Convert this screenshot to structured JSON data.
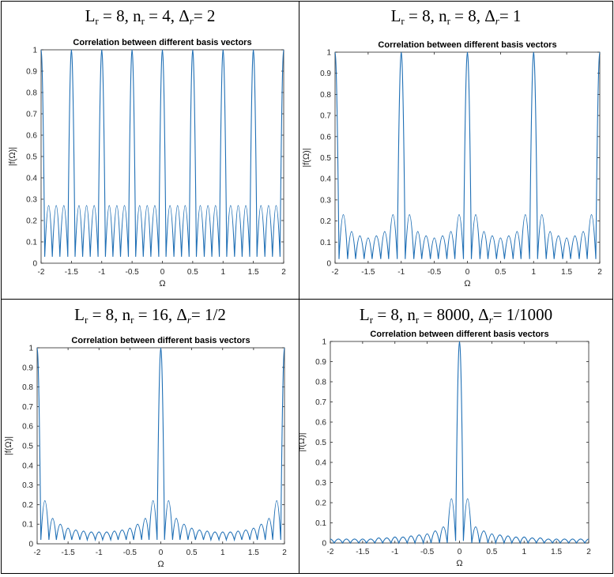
{
  "panels": [
    {
      "heading": {
        "l": "L",
        "ls": "r",
        "mid": " = 8, n",
        "ns": "r",
        "mid2": " = 4, Δ",
        "ds": "r",
        "tail": "= 2"
      }
    },
    {
      "heading": {
        "l": "L",
        "ls": "r",
        "mid": " = 8, n",
        "ns": "r",
        "mid2": " = 8, Δ",
        "ds": "r",
        "tail": "= 1"
      }
    },
    {
      "heading": {
        "l": "L",
        "ls": "r",
        "mid": " = 8, n",
        "ns": "r",
        "mid2": " = 16, Δ",
        "ds": "r",
        "tail": "= 1/2"
      }
    },
    {
      "heading": {
        "l": "L",
        "ls": "r",
        "mid": " = 8, n",
        "ns": "r",
        "mid2": " = 8000, Δ",
        "ds": "r",
        "tail": "= 1/1000"
      }
    }
  ],
  "chart_data": [
    {
      "type": "line",
      "title": "Correlation between different basis vectors",
      "xlabel": "Ω",
      "ylabel": "|f(Ω)|",
      "xlim": [
        -2,
        2
      ],
      "ylim": [
        0,
        1
      ],
      "xticks": [
        "-2",
        "-1.5",
        "-1",
        "-0.5",
        "0",
        "0.5",
        "1",
        "1.5",
        "2"
      ],
      "yticks": [
        "0",
        "0.1",
        "0.2",
        "0.3",
        "0.4",
        "0.5",
        "0.6",
        "0.7",
        "0.8",
        "0.9",
        "1"
      ],
      "series": [
        {
          "color": "#1f6fb5",
          "x": [
            -2,
            -1.94,
            -1.875,
            -1.815,
            -1.75,
            -1.69,
            -1.625,
            -1.56,
            -1.5,
            -1.44,
            -1.375,
            -1.315,
            -1.25,
            -1.19,
            -1.125,
            -1.06,
            -1,
            -0.94,
            -0.875,
            -0.815,
            -0.75,
            -0.69,
            -0.625,
            -0.56,
            -0.5,
            -0.44,
            -0.375,
            -0.315,
            -0.25,
            -0.19,
            -0.125,
            -0.06,
            0,
            0.06,
            0.125,
            0.19,
            0.25,
            0.315,
            0.375,
            0.44,
            0.5,
            0.56,
            0.625,
            0.69,
            0.75,
            0.815,
            0.875,
            0.94,
            1,
            1.06,
            1.125,
            1.19,
            1.25,
            1.315,
            1.375,
            1.44,
            1.5,
            1.56,
            1.625,
            1.69,
            1.75,
            1.815,
            1.875,
            1.94,
            2
          ],
          "y": [
            1,
            0.03,
            0.27,
            0.03,
            0.27,
            0.03,
            0.27,
            0.03,
            1,
            0.03,
            0.27,
            0.03,
            0.27,
            0.03,
            0.27,
            0.03,
            1,
            0.03,
            0.27,
            0.03,
            0.27,
            0.03,
            0.27,
            0.03,
            1,
            0.03,
            0.27,
            0.03,
            0.27,
            0.03,
            0.27,
            0.03,
            1,
            0.03,
            0.27,
            0.03,
            0.27,
            0.03,
            0.27,
            0.03,
            1,
            0.03,
            0.27,
            0.03,
            0.27,
            0.03,
            0.27,
            0.03,
            1,
            0.03,
            0.27,
            0.03,
            0.27,
            0.03,
            0.27,
            0.03,
            1,
            0.03,
            0.27,
            0.03,
            0.27,
            0.03,
            0.27,
            0.03,
            1
          ]
        }
      ]
    },
    {
      "type": "line",
      "title": "Correlation between different basis vectors",
      "xlabel": "Ω",
      "ylabel": "|f(Ω)|",
      "xlim": [
        -2,
        2
      ],
      "ylim": [
        0,
        1
      ],
      "xticks": [
        "-2",
        "-1.5",
        "-1",
        "-0.5",
        "0",
        "0.5",
        "1",
        "1.5",
        "2"
      ],
      "yticks": [
        "0",
        "0.1",
        "0.2",
        "0.3",
        "0.4",
        "0.5",
        "0.6",
        "0.7",
        "0.8",
        "0.9",
        "1"
      ],
      "series": [
        {
          "color": "#1f6fb5",
          "x": [
            -2,
            -1.94,
            -1.875,
            -1.81,
            -1.75,
            -1.69,
            -1.625,
            -1.56,
            -1.5,
            -1.44,
            -1.375,
            -1.31,
            -1.25,
            -1.19,
            -1.125,
            -1.06,
            -1,
            -0.94,
            -0.875,
            -0.81,
            -0.75,
            -0.69,
            -0.625,
            -0.56,
            -0.5,
            -0.44,
            -0.375,
            -0.31,
            -0.25,
            -0.19,
            -0.125,
            -0.06,
            0,
            0.06,
            0.125,
            0.19,
            0.25,
            0.31,
            0.375,
            0.44,
            0.5,
            0.56,
            0.625,
            0.69,
            0.75,
            0.81,
            0.875,
            0.94,
            1,
            1.06,
            1.125,
            1.19,
            1.25,
            1.31,
            1.375,
            1.44,
            1.5,
            1.56,
            1.625,
            1.69,
            1.75,
            1.81,
            1.875,
            1.94,
            2
          ],
          "y": [
            1,
            0.02,
            0.23,
            0.02,
            0.15,
            0.02,
            0.13,
            0.02,
            0.12,
            0.02,
            0.13,
            0.02,
            0.15,
            0.02,
            0.23,
            0.02,
            1,
            0.02,
            0.23,
            0.02,
            0.15,
            0.02,
            0.13,
            0.02,
            0.12,
            0.02,
            0.13,
            0.02,
            0.15,
            0.02,
            0.23,
            0.02,
            1,
            0.02,
            0.23,
            0.02,
            0.15,
            0.02,
            0.13,
            0.02,
            0.12,
            0.02,
            0.13,
            0.02,
            0.15,
            0.02,
            0.23,
            0.02,
            1,
            0.02,
            0.23,
            0.02,
            0.15,
            0.02,
            0.13,
            0.02,
            0.12,
            0.02,
            0.13,
            0.02,
            0.15,
            0.02,
            0.23,
            0.02,
            1
          ]
        }
      ]
    },
    {
      "type": "line",
      "title": "Correlation between different basis vectors",
      "xlabel": "Ω",
      "ylabel": "|f(Ω)|",
      "xlim": [
        -2,
        2
      ],
      "ylim": [
        0,
        1
      ],
      "xticks": [
        "-2",
        "-1.5",
        "-1",
        "-0.5",
        "0",
        "0.5",
        "1",
        "1.5",
        "2"
      ],
      "yticks": [
        "0",
        "0.1",
        "0.2",
        "0.3",
        "0.4",
        "0.5",
        "0.6",
        "0.7",
        "0.8",
        "0.9",
        "1"
      ],
      "series": [
        {
          "color": "#1f6fb5",
          "x": [
            -2,
            -1.94,
            -1.875,
            -1.81,
            -1.75,
            -1.69,
            -1.625,
            -1.56,
            -1.5,
            -1.44,
            -1.375,
            -1.31,
            -1.25,
            -1.19,
            -1.125,
            -1.06,
            -1,
            -0.94,
            -0.875,
            -0.81,
            -0.75,
            -0.69,
            -0.625,
            -0.56,
            -0.5,
            -0.44,
            -0.375,
            -0.31,
            -0.25,
            -0.19,
            -0.125,
            -0.06,
            0,
            0.06,
            0.125,
            0.19,
            0.25,
            0.31,
            0.375,
            0.44,
            0.5,
            0.56,
            0.625,
            0.69,
            0.75,
            0.81,
            0.875,
            0.94,
            1,
            1.06,
            1.125,
            1.19,
            1.25,
            1.31,
            1.375,
            1.44,
            1.5,
            1.56,
            1.625,
            1.69,
            1.75,
            1.81,
            1.875,
            1.94,
            2
          ],
          "y": [
            1,
            0.02,
            0.22,
            0.02,
            0.13,
            0.02,
            0.1,
            0.02,
            0.08,
            0.02,
            0.07,
            0.02,
            0.065,
            0.02,
            0.06,
            0.02,
            0.06,
            0.02,
            0.06,
            0.02,
            0.065,
            0.02,
            0.07,
            0.02,
            0.08,
            0.02,
            0.1,
            0.02,
            0.13,
            0.02,
            0.22,
            0.02,
            1,
            0.02,
            0.22,
            0.02,
            0.13,
            0.02,
            0.1,
            0.02,
            0.08,
            0.02,
            0.07,
            0.02,
            0.065,
            0.02,
            0.06,
            0.02,
            0.06,
            0.02,
            0.06,
            0.02,
            0.065,
            0.02,
            0.07,
            0.02,
            0.08,
            0.02,
            0.1,
            0.02,
            0.13,
            0.02,
            0.22,
            0.02,
            1
          ]
        }
      ]
    },
    {
      "type": "line",
      "title": "Correlation between different basis vectors",
      "xlabel": "Ω",
      "ylabel": "|f(Ω)|",
      "xlim": [
        -2,
        2
      ],
      "ylim": [
        0,
        1
      ],
      "xticks": [
        "-2",
        "-1.5",
        "-1",
        "-0.5",
        "0",
        "0.5",
        "1",
        "1.5",
        "2"
      ],
      "yticks": [
        "0",
        "0.1",
        "0.2",
        "0.3",
        "0.4",
        "0.5",
        "0.6",
        "0.7",
        "0.8",
        "0.9",
        "1"
      ],
      "series": [
        {
          "color": "#1f6fb5",
          "x": [
            -2,
            -1.94,
            -1.875,
            -1.81,
            -1.75,
            -1.69,
            -1.625,
            -1.56,
            -1.5,
            -1.44,
            -1.375,
            -1.31,
            -1.25,
            -1.19,
            -1.125,
            -1.06,
            -1,
            -0.94,
            -0.875,
            -0.81,
            -0.75,
            -0.69,
            -0.625,
            -0.56,
            -0.5,
            -0.44,
            -0.375,
            -0.31,
            -0.25,
            -0.19,
            -0.125,
            -0.06,
            0,
            0.06,
            0.125,
            0.19,
            0.25,
            0.31,
            0.375,
            0.44,
            0.5,
            0.56,
            0.625,
            0.69,
            0.75,
            0.81,
            0.875,
            0.94,
            1,
            1.06,
            1.125,
            1.19,
            1.25,
            1.31,
            1.375,
            1.44,
            1.5,
            1.56,
            1.625,
            1.69,
            1.75,
            1.81,
            1.875,
            1.94,
            2
          ],
          "y": [
            0.02,
            0,
            0.02,
            0,
            0.02,
            0,
            0.02,
            0,
            0.02,
            0,
            0.02,
            0,
            0.025,
            0,
            0.025,
            0,
            0.03,
            0,
            0.03,
            0,
            0.035,
            0,
            0.04,
            0,
            0.045,
            0,
            0.06,
            0,
            0.08,
            0,
            0.22,
            0.01,
            1,
            0.01,
            0.22,
            0,
            0.08,
            0,
            0.06,
            0,
            0.045,
            0,
            0.04,
            0,
            0.035,
            0,
            0.03,
            0,
            0.03,
            0,
            0.025,
            0,
            0.025,
            0,
            0.02,
            0,
            0.02,
            0,
            0.02,
            0,
            0.02,
            0,
            0.02,
            0,
            0.02
          ]
        }
      ]
    }
  ]
}
